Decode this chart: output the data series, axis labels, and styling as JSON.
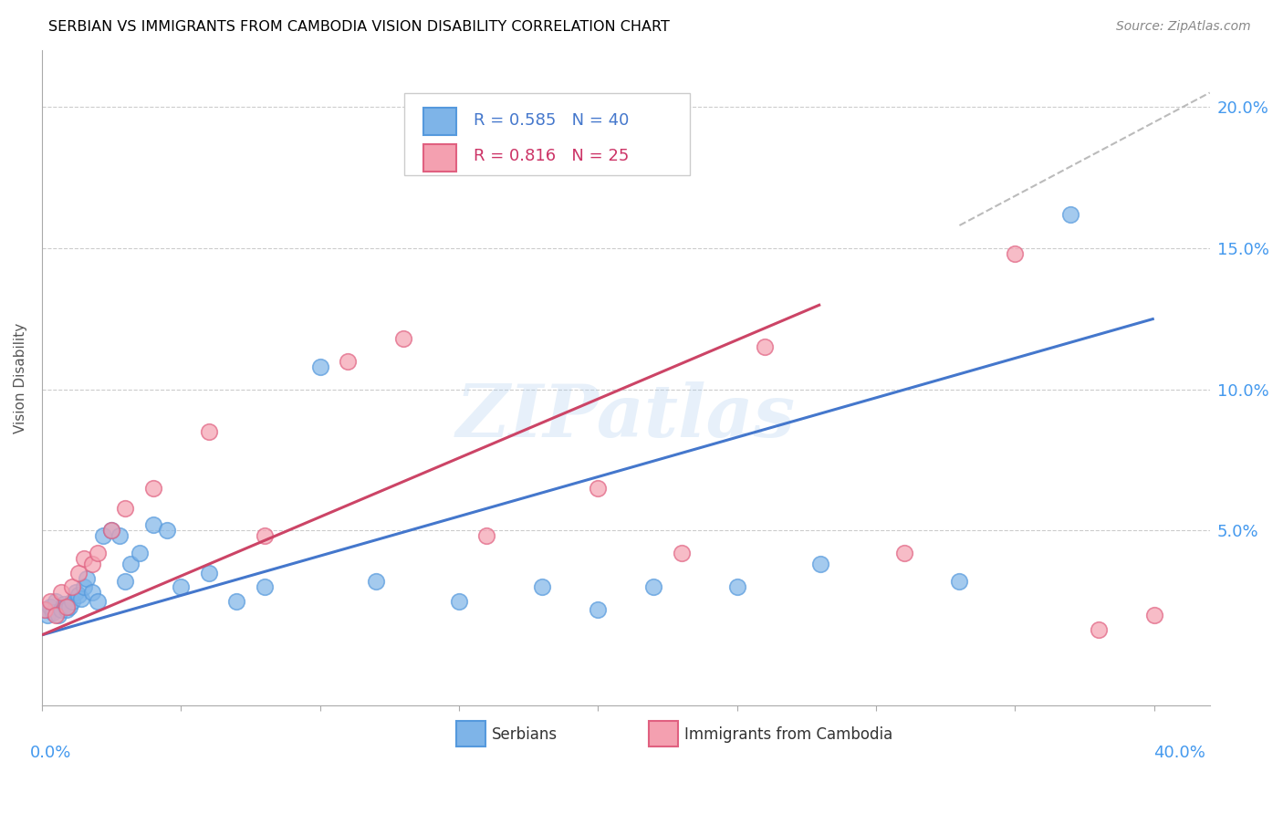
{
  "title": "SERBIAN VS IMMIGRANTS FROM CAMBODIA VISION DISABILITY CORRELATION CHART",
  "source": "Source: ZipAtlas.com",
  "ylabel": "Vision Disability",
  "xlim": [
    0.0,
    0.42
  ],
  "ylim": [
    -0.012,
    0.22
  ],
  "blue_color": "#7EB4E8",
  "blue_edge": "#5599DD",
  "pink_color": "#F4A0B0",
  "pink_edge": "#E06080",
  "line_blue": "#4477CC",
  "line_pink": "#CC4466",
  "watermark": "ZIPatlas",
  "serbians_x": [
    0.001,
    0.002,
    0.003,
    0.004,
    0.005,
    0.006,
    0.007,
    0.008,
    0.009,
    0.01,
    0.011,
    0.012,
    0.013,
    0.014,
    0.015,
    0.016,
    0.018,
    0.02,
    0.022,
    0.025,
    0.028,
    0.03,
    0.032,
    0.035,
    0.04,
    0.045,
    0.05,
    0.06,
    0.07,
    0.08,
    0.1,
    0.12,
    0.15,
    0.18,
    0.2,
    0.22,
    0.25,
    0.28,
    0.33,
    0.37
  ],
  "serbians_y": [
    0.022,
    0.02,
    0.023,
    0.021,
    0.025,
    0.02,
    0.022,
    0.024,
    0.022,
    0.023,
    0.025,
    0.028,
    0.027,
    0.026,
    0.03,
    0.033,
    0.028,
    0.025,
    0.048,
    0.05,
    0.048,
    0.032,
    0.038,
    0.042,
    0.052,
    0.05,
    0.03,
    0.035,
    0.025,
    0.03,
    0.108,
    0.032,
    0.025,
    0.03,
    0.022,
    0.03,
    0.03,
    0.038,
    0.032,
    0.162
  ],
  "cambodia_x": [
    0.001,
    0.003,
    0.005,
    0.007,
    0.009,
    0.011,
    0.013,
    0.015,
    0.018,
    0.02,
    0.025,
    0.03,
    0.04,
    0.06,
    0.08,
    0.11,
    0.13,
    0.16,
    0.2,
    0.23,
    0.26,
    0.31,
    0.35,
    0.38,
    0.4
  ],
  "cambodia_y": [
    0.022,
    0.025,
    0.02,
    0.028,
    0.023,
    0.03,
    0.035,
    0.04,
    0.038,
    0.042,
    0.05,
    0.058,
    0.065,
    0.085,
    0.048,
    0.11,
    0.118,
    0.048,
    0.065,
    0.042,
    0.115,
    0.042,
    0.148,
    0.015,
    0.02
  ],
  "blue_line_x": [
    0.0,
    0.4
  ],
  "blue_line_y": [
    0.013,
    0.125
  ],
  "pink_line_x": [
    0.0,
    0.28
  ],
  "pink_line_y": [
    0.013,
    0.13
  ],
  "dashed_line_x": [
    0.33,
    0.42
  ],
  "dashed_line_y": [
    0.158,
    0.205
  ]
}
